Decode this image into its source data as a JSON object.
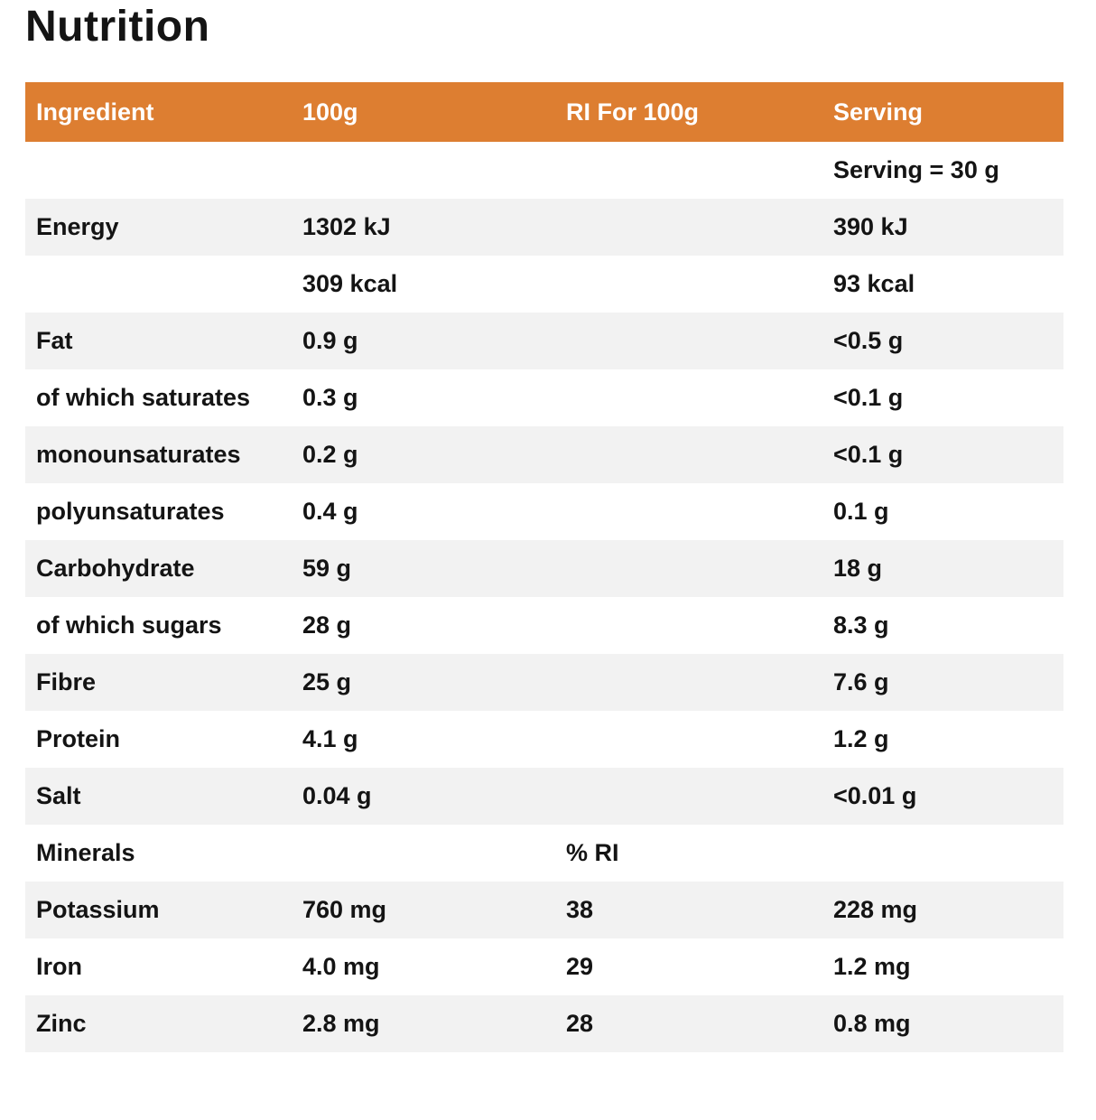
{
  "title": "Nutrition",
  "colors": {
    "header_bg": "#DD7E31",
    "header_text": "#FFFFFF",
    "row_alt_bg": "#F2F2F2",
    "text": "#141414"
  },
  "table": {
    "headers": [
      "Ingredient",
      "100g",
      "RI For 100g",
      "Serving"
    ],
    "rows": [
      {
        "ingredient": "",
        "per_100g": "",
        "ri_for_100g": "",
        "serving": "Serving = 30 g",
        "shaded": false
      },
      {
        "ingredient": "Energy",
        "per_100g": "1302 kJ",
        "ri_for_100g": "",
        "serving": "390 kJ",
        "shaded": true
      },
      {
        "ingredient": "",
        "per_100g": "309 kcal",
        "ri_for_100g": "",
        "serving": "93 kcal",
        "shaded": false
      },
      {
        "ingredient": "Fat",
        "per_100g": "0.9 g",
        "ri_for_100g": "",
        "serving": "<0.5 g",
        "shaded": true
      },
      {
        "ingredient": "of which saturates",
        "per_100g": "0.3 g",
        "ri_for_100g": "",
        "serving": "<0.1 g",
        "shaded": false
      },
      {
        "ingredient": "monounsaturates",
        "per_100g": "0.2 g",
        "ri_for_100g": "",
        "serving": "<0.1 g",
        "shaded": true
      },
      {
        "ingredient": "polyunsaturates",
        "per_100g": "0.4 g",
        "ri_for_100g": "",
        "serving": "0.1 g",
        "shaded": false
      },
      {
        "ingredient": "Carbohydrate",
        "per_100g": "59 g",
        "ri_for_100g": "",
        "serving": "18 g",
        "shaded": true
      },
      {
        "ingredient": "of which sugars",
        "per_100g": "28 g",
        "ri_for_100g": "",
        "serving": "8.3 g",
        "shaded": false
      },
      {
        "ingredient": "Fibre",
        "per_100g": "25 g",
        "ri_for_100g": "",
        "serving": "7.6 g",
        "shaded": true
      },
      {
        "ingredient": "Protein",
        "per_100g": "4.1 g",
        "ri_for_100g": "",
        "serving": "1.2 g",
        "shaded": false
      },
      {
        "ingredient": "Salt",
        "per_100g": "0.04 g",
        "ri_for_100g": "",
        "serving": "<0.01 g",
        "shaded": true
      },
      {
        "ingredient": "Minerals",
        "per_100g": "",
        "ri_for_100g": "% RI",
        "serving": "",
        "shaded": false
      },
      {
        "ingredient": "Potassium",
        "per_100g": "760 mg",
        "ri_for_100g": "38",
        "serving": "228 mg",
        "shaded": true
      },
      {
        "ingredient": "Iron",
        "per_100g": "4.0 mg",
        "ri_for_100g": "29",
        "serving": "1.2 mg",
        "shaded": false
      },
      {
        "ingredient": "Zinc",
        "per_100g": "2.8 mg",
        "ri_for_100g": "28",
        "serving": "0.8 mg",
        "shaded": true
      }
    ]
  }
}
